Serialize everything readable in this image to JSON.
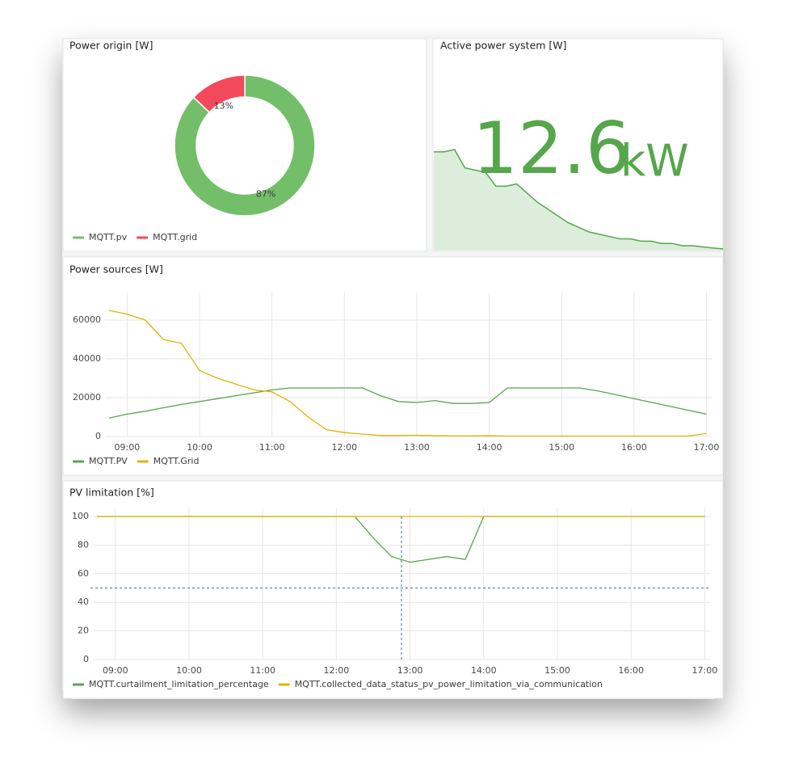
{
  "chart_data": [
    {
      "type": "pie",
      "title": "Power origin [W]",
      "donut": true,
      "categories": [
        "MQTT.pv",
        "MQTT.grid"
      ],
      "values": [
        87,
        13
      ],
      "value_labels": [
        "87%",
        "13%"
      ],
      "colors": [
        "#73bf69",
        "#f2495c"
      ]
    },
    {
      "type": "stat",
      "title": "Active power system [W]",
      "value": 12.6,
      "unit": "kW",
      "color": "#56a64b",
      "sparkline": [
        55,
        55,
        56,
        48,
        47,
        46,
        40,
        40,
        41,
        37,
        33,
        30,
        27,
        24,
        22,
        20,
        19,
        18,
        17,
        17,
        16,
        16,
        15,
        15,
        14,
        14,
        13.5,
        13,
        12.6
      ]
    },
    {
      "type": "line",
      "title": "Power sources [W]",
      "grid": true,
      "x": [
        "08:45",
        "09:00",
        "09:15",
        "09:30",
        "09:45",
        "10:00",
        "10:15",
        "10:30",
        "10:45",
        "11:00",
        "11:15",
        "11:30",
        "11:45",
        "12:00",
        "12:15",
        "12:30",
        "12:45",
        "13:00",
        "13:15",
        "13:30",
        "13:45",
        "14:00",
        "14:15",
        "14:30",
        "14:45",
        "15:00",
        "15:15",
        "15:30",
        "15:45",
        "16:00",
        "16:15",
        "16:30",
        "16:45",
        "17:00"
      ],
      "series": [
        {
          "name": "MQTT.PV",
          "color": "#56a64b",
          "values": [
            9500,
            11500,
            13000,
            14800,
            16500,
            18000,
            19500,
            21000,
            22500,
            24000,
            25000,
            25000,
            25000,
            25000,
            25000,
            21000,
            18000,
            17500,
            18500,
            17000,
            17000,
            17500,
            25000,
            25000,
            25000,
            25000,
            25000,
            23500,
            21500,
            19500,
            17500,
            15500,
            13500,
            11500
          ]
        },
        {
          "name": "MQTT.Grid",
          "color": "#e0b400",
          "values": [
            65000,
            63000,
            60000,
            50000,
            48000,
            34000,
            30000,
            27000,
            24000,
            23000,
            18000,
            10000,
            3500,
            2000,
            1200,
            500,
            500,
            600,
            400,
            300,
            300,
            400,
            200,
            200,
            200,
            200,
            200,
            200,
            200,
            200,
            200,
            200,
            200,
            1500
          ]
        }
      ],
      "xlim": [
        "08:45",
        "17:05"
      ],
      "xticks": [
        "09:00",
        "10:00",
        "11:00",
        "12:00",
        "13:00",
        "14:00",
        "15:00",
        "16:00",
        "17:00"
      ],
      "ylim": [
        0,
        70000
      ],
      "yticks": [
        0,
        20000,
        40000,
        60000
      ]
    },
    {
      "type": "line",
      "title": "PV limitation [%]",
      "grid": true,
      "x": [
        "08:45",
        "09:00",
        "09:15",
        "09:30",
        "09:45",
        "10:00",
        "10:15",
        "10:30",
        "10:45",
        "11:00",
        "11:15",
        "11:30",
        "11:45",
        "12:00",
        "12:15",
        "12:30",
        "12:45",
        "13:00",
        "13:15",
        "13:30",
        "13:45",
        "14:00",
        "14:15",
        "14:30",
        "14:45",
        "15:00",
        "15:15",
        "15:30",
        "15:45",
        "16:00",
        "16:15",
        "16:30",
        "16:45",
        "17:00"
      ],
      "series": [
        {
          "name": "MQTT.curtailment_limitation_percentage",
          "color": "#56a64b",
          "values": [
            100,
            100,
            100,
            100,
            100,
            100,
            100,
            100,
            100,
            100,
            100,
            100,
            100,
            100,
            100,
            85,
            72,
            68,
            70,
            72,
            70,
            100,
            100,
            100,
            100,
            100,
            100,
            100,
            100,
            100,
            100,
            100,
            100,
            100
          ]
        },
        {
          "name": "MQTT.collected_data_status_pv_power_limitation_via_communication",
          "color": "#e0b400",
          "values": [
            100,
            100,
            100,
            100,
            100,
            100,
            100,
            100,
            100,
            100,
            100,
            100,
            100,
            100,
            100,
            100,
            100,
            100,
            100,
            100,
            100,
            100,
            100,
            100,
            100,
            100,
            100,
            100,
            100,
            100,
            100,
            100,
            100,
            100
          ]
        }
      ],
      "crosshair": {
        "x": "12:53",
        "y": 50
      },
      "xlim": [
        "08:45",
        "17:05"
      ],
      "xticks": [
        "09:00",
        "10:00",
        "11:00",
        "12:00",
        "13:00",
        "14:00",
        "15:00",
        "16:00",
        "17:00"
      ],
      "ylim": [
        0,
        100
      ],
      "yticks": [
        0,
        20,
        40,
        60,
        80,
        100
      ]
    }
  ]
}
